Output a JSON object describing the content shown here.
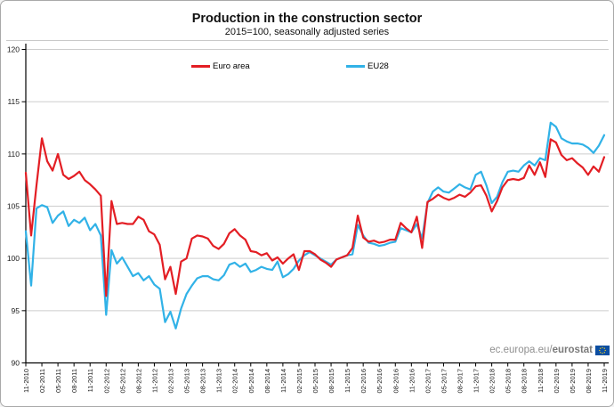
{
  "chart_data": {
    "type": "line",
    "title": "Production in the construction sector",
    "subtitle": "2015=100, seasonally adjusted series",
    "grid": "horizontal",
    "legend_position": "top-inside",
    "ylim": [
      90,
      121
    ],
    "yticks": [
      90,
      95,
      100,
      105,
      110,
      115,
      120
    ],
    "n_points": 109,
    "months_per_tick": 3,
    "x_tick_labels": [
      "11-2010",
      "02-2011",
      "05-2011",
      "08-2011",
      "11-2011",
      "02-2012",
      "05-2012",
      "08-2012",
      "11-2012",
      "02-2013",
      "05-2013",
      "08-2013",
      "11-2013",
      "02-2014",
      "05-2014",
      "08-2014",
      "11-2014",
      "02-2015",
      "05-2015",
      "08-2015",
      "11-2015",
      "02-2016",
      "05-2016",
      "08-2016",
      "11-2016",
      "02-2017",
      "05-2017",
      "08-2017",
      "11-2017",
      "02-2018",
      "05-2018",
      "08-2018",
      "11-2018",
      "02-2019",
      "05-2019",
      "08-2019",
      "11-2019"
    ],
    "series": [
      {
        "name": "Euro area",
        "color": "#e31e24",
        "values": [
          108.2,
          102.2,
          107.0,
          111.5,
          109.3,
          108.4,
          110.0,
          108.0,
          107.6,
          107.9,
          108.3,
          107.5,
          107.1,
          106.6,
          106.0,
          96.4,
          105.5,
          103.3,
          103.4,
          103.3,
          103.3,
          104.0,
          103.7,
          102.6,
          102.3,
          101.3,
          98.0,
          99.2,
          96.6,
          99.7,
          100.0,
          101.9,
          102.2,
          102.1,
          101.9,
          101.2,
          100.9,
          101.4,
          102.4,
          102.8,
          102.2,
          101.8,
          100.7,
          100.6,
          100.3,
          100.5,
          99.8,
          100.1,
          99.5,
          100.0,
          100.4,
          98.9,
          100.7,
          100.7,
          100.4,
          99.9,
          99.6,
          99.2,
          99.9,
          100.1,
          100.3,
          101.0,
          104.1,
          102.0,
          101.6,
          101.7,
          101.5,
          101.6,
          101.8,
          101.8,
          103.4,
          102.9,
          102.5,
          104.0,
          101.0,
          105.4,
          105.7,
          106.1,
          105.8,
          105.6,
          105.8,
          106.1,
          105.9,
          106.3,
          106.9,
          107.0,
          106.0,
          104.5,
          105.5,
          106.8,
          107.5,
          107.6,
          107.5,
          107.7,
          108.9,
          108.0,
          109.2,
          107.8,
          111.4,
          111.1,
          109.9,
          109.4,
          109.6,
          109.1,
          108.7,
          108.0,
          108.8,
          108.3,
          109.7
        ]
      },
      {
        "name": "EU28",
        "color": "#31b2e7",
        "values": [
          102.6,
          97.4,
          104.8,
          105.1,
          104.9,
          103.4,
          104.1,
          104.5,
          103.1,
          103.7,
          103.4,
          103.9,
          102.7,
          103.3,
          102.2,
          94.6,
          100.8,
          99.5,
          100.1,
          99.2,
          98.3,
          98.6,
          97.9,
          98.3,
          97.5,
          97.1,
          93.9,
          94.9,
          93.3,
          95.2,
          96.6,
          97.4,
          98.1,
          98.3,
          98.3,
          98.0,
          97.9,
          98.4,
          99.4,
          99.6,
          99.2,
          99.5,
          98.7,
          98.9,
          99.2,
          99.0,
          98.9,
          99.7,
          98.2,
          98.5,
          99.0,
          99.8,
          100.3,
          100.6,
          100.3,
          100.0,
          99.7,
          99.4,
          99.9,
          100.1,
          100.3,
          100.4,
          103.2,
          102.2,
          101.5,
          101.4,
          101.2,
          101.3,
          101.5,
          101.6,
          102.9,
          102.7,
          102.5,
          103.3,
          101.9,
          105.3,
          106.4,
          106.8,
          106.4,
          106.3,
          106.7,
          107.1,
          106.8,
          106.6,
          108.0,
          108.3,
          107.0,
          105.3,
          105.9,
          107.3,
          108.3,
          108.4,
          108.3,
          108.9,
          109.3,
          108.9,
          109.6,
          109.4,
          113.0,
          112.6,
          111.5,
          111.2,
          111.0,
          111.0,
          110.9,
          110.6,
          110.1,
          110.8,
          111.8
        ]
      }
    ],
    "watermark": {
      "prefix": "ec.europa.eu/",
      "bold": "eurostat"
    }
  },
  "colors": {
    "grid": "#cdcdcd",
    "axis": "#000000",
    "tick_text": "#1a1a1a",
    "flag_blue": "#0b4ea2",
    "flag_star": "#ffd617"
  }
}
